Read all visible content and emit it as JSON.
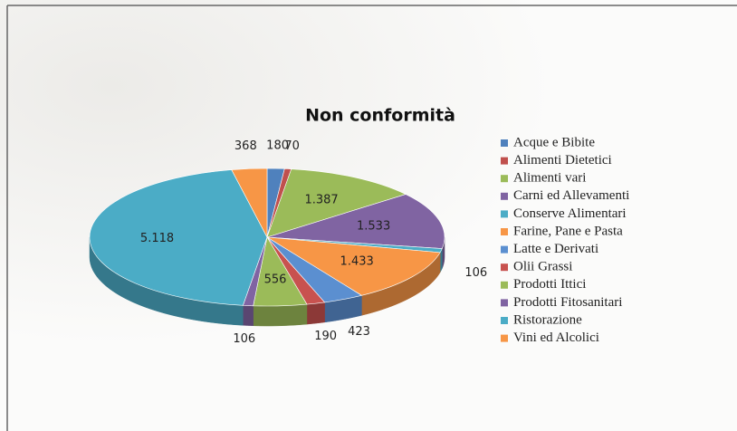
{
  "chart_data": {
    "type": "pie",
    "title": "Non conformità",
    "categories": [
      "Acque e Bibite",
      "Alimenti Dietetici",
      "Alimenti vari",
      "Carni ed Allevamenti",
      "Conserve Alimentari",
      "Farine, Pane e Pasta",
      "Latte e Derivati",
      "Olii Grassi",
      "Prodotti Ittici",
      "Prodotti Fitosanitari",
      "Ristorazione",
      "Vini ed Alcolici"
    ],
    "values": [
      180,
      70,
      1387,
      1533,
      106,
      1433,
      423,
      190,
      556,
      106,
      5118,
      368
    ],
    "value_labels": [
      "180",
      "70",
      "1.387",
      "1.533",
      "106",
      "1.433",
      "423",
      "190",
      "556",
      "106",
      "5.118",
      "368"
    ],
    "colors": [
      "#4f81bd",
      "#c0504d",
      "#9bbb59",
      "#8064a2",
      "#4bacc6",
      "#f79646",
      "#5b8fd0",
      "#c8524f",
      "#9bbb59",
      "#8064a2",
      "#4bacc6",
      "#f79646"
    ],
    "legend": "right"
  }
}
